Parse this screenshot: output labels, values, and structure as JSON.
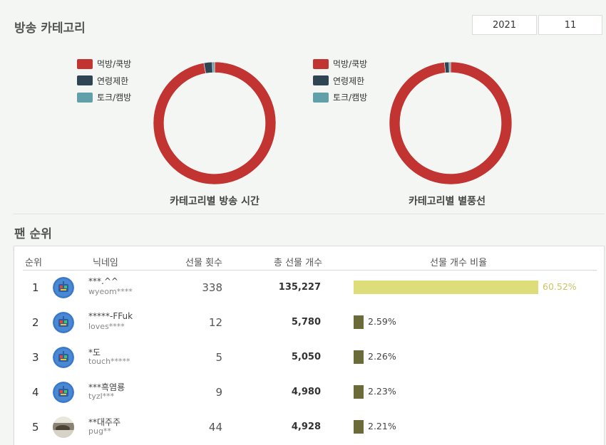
{
  "header": {
    "title": "방송 카테고리",
    "year": "2021",
    "month": "11"
  },
  "colors": {
    "mukbang": "#c23431",
    "adult": "#2f4554",
    "talk": "#61a0a8",
    "bar_top": "#dddd7a",
    "bar_other": "#6b6b3a",
    "pct_top": "#c9c363",
    "pct_other": "#444444"
  },
  "chart_data": [
    {
      "type": "pie",
      "variant": "donut",
      "title": "카테고리별 방송 시간",
      "legend": [
        "먹방/쿡방",
        "연령제한",
        "토크/캠방"
      ],
      "legend_position": "top-left",
      "values": [
        97.2,
        2.2,
        0.6
      ]
    },
    {
      "type": "pie",
      "variant": "donut",
      "title": "카테고리별 별풍선",
      "legend": [
        "먹방/쿡방",
        "연령제한",
        "토크/캠방"
      ],
      "legend_position": "top-left",
      "values": [
        98.4,
        1.2,
        0.4
      ]
    }
  ],
  "fan_rank": {
    "title": "팬 순위",
    "columns": [
      "순위",
      "닉네임",
      "선물 횟수",
      "총 선물 개수",
      "선물 개수 비율"
    ],
    "rows": [
      {
        "rank": "1",
        "nick": "***.^^",
        "uid": "wyeom****",
        "count": "338",
        "total": "135,227",
        "pct_text": "60.52%",
        "pct": 60.52,
        "avatar": "robot-icon"
      },
      {
        "rank": "2",
        "nick": "*****-FFuk",
        "uid": "loves****",
        "count": "12",
        "total": "5,780",
        "pct_text": "2.59%",
        "pct": 2.59,
        "avatar": "robot-icon"
      },
      {
        "rank": "3",
        "nick": "*도",
        "uid": "touch*****",
        "count": "5",
        "total": "5,050",
        "pct_text": "2.26%",
        "pct": 2.26,
        "avatar": "robot-icon"
      },
      {
        "rank": "4",
        "nick": "***흑염룡",
        "uid": "tyzl***",
        "count": "9",
        "total": "4,980",
        "pct_text": "2.23%",
        "pct": 2.23,
        "avatar": "robot-icon"
      },
      {
        "rank": "5",
        "nick": "**대주주",
        "uid": "pug**",
        "count": "44",
        "total": "4,928",
        "pct_text": "2.21%",
        "pct": 2.21,
        "avatar": "photo-avatar"
      }
    ]
  }
}
